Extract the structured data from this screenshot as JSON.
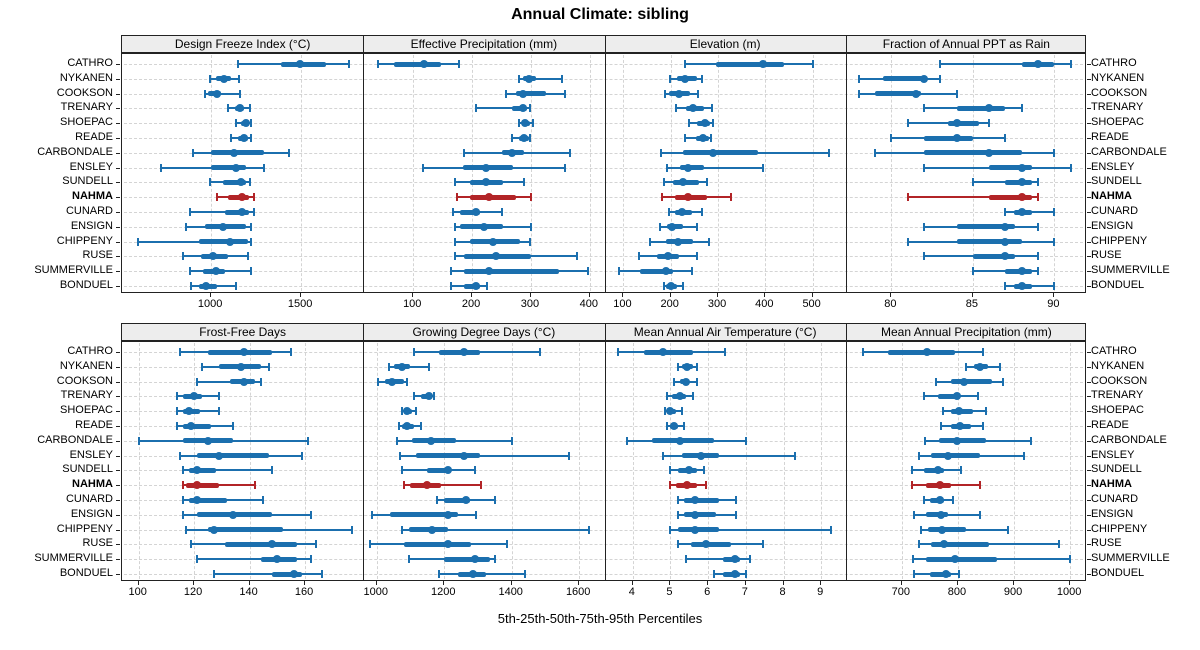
{
  "chart_data": {
    "type": "scatter",
    "subtype": "percentile-dotplot",
    "title": "Annual Climate: sibling",
    "xlabel": "5th-25th-50th-75th-95th Percentiles",
    "percentiles": [
      5,
      25,
      50,
      75,
      95
    ],
    "legend": "none",
    "grid": "dashed",
    "stations": [
      "CATHRO",
      "NYKANEN",
      "COOKSON",
      "TRENARY",
      "SHOEPAC",
      "READE",
      "CARBONDALE",
      "ENSLEY",
      "SUNDELL",
      "NAHMA",
      "CUNARD",
      "ENSIGN",
      "CHIPPENY",
      "RUSE",
      "SUMMERVILLE",
      "BONDUEL"
    ],
    "highlighted_station": "NAHMA",
    "colors": {
      "series": "#1b6fae",
      "highlight": "#b22427",
      "gridline": "#d4d4d4",
      "strip_bg": "#ededed",
      "border": "#222222"
    },
    "panels": [
      {
        "title": "Design Freeze Index (°C)",
        "row": 0,
        "col": 0,
        "xlim": [
          505,
          1845
        ],
        "ticks": [
          1000,
          1500
        ],
        "values": [
          [
            1150,
            1390,
            1495,
            1640,
            1765
          ],
          [
            995,
            1025,
            1070,
            1110,
            1155
          ],
          [
            965,
            985,
            1030,
            1055,
            1160
          ],
          [
            1095,
            1130,
            1160,
            1185,
            1215
          ],
          [
            1140,
            1165,
            1195,
            1210,
            1220
          ],
          [
            1110,
            1150,
            1185,
            1205,
            1220
          ],
          [
            900,
            1000,
            1125,
            1295,
            1435
          ],
          [
            720,
            1000,
            1140,
            1195,
            1295
          ],
          [
            995,
            1065,
            1165,
            1195,
            1215
          ],
          [
            1035,
            1095,
            1170,
            1210,
            1240
          ],
          [
            880,
            1075,
            1170,
            1210,
            1240
          ],
          [
            860,
            965,
            1065,
            1195,
            1220
          ],
          [
            595,
            935,
            1105,
            1205,
            1220
          ],
          [
            845,
            945,
            1010,
            1095,
            1205
          ],
          [
            880,
            955,
            1025,
            1075,
            1220
          ],
          [
            890,
            935,
            970,
            1035,
            1140
          ]
        ]
      },
      {
        "title": "Effective Precipitation (mm)",
        "row": 0,
        "col": 1,
        "xlim": [
          15,
          425
        ],
        "ticks": [
          100,
          200,
          300,
          400
        ],
        "values": [
          [
            40,
            67,
            118,
            147,
            178
          ],
          [
            280,
            286,
            296,
            308,
            353
          ],
          [
            258,
            274,
            286,
            325,
            358
          ],
          [
            206,
            267,
            286,
            294,
            298
          ],
          [
            280,
            285,
            290,
            298,
            303
          ],
          [
            267,
            279,
            288,
            296,
            298
          ],
          [
            186,
            250,
            267,
            289,
            367
          ],
          [
            117,
            185,
            224,
            270,
            358
          ],
          [
            171,
            197,
            224,
            253,
            289
          ],
          [
            175,
            197,
            228,
            274,
            300
          ],
          [
            168,
            180,
            207,
            214,
            250
          ],
          [
            171,
            180,
            221,
            253,
            300
          ],
          [
            171,
            197,
            235,
            281,
            298
          ],
          [
            171,
            186,
            241,
            300,
            378
          ],
          [
            164,
            186,
            228,
            347,
            397
          ],
          [
            164,
            186,
            206,
            214,
            225
          ]
        ]
      },
      {
        "title": "Elevation (m)",
        "row": 0,
        "col": 2,
        "xlim": [
          60,
          570
        ],
        "ticks": [
          100,
          200,
          300,
          400,
          500
        ],
        "values": [
          [
            230,
            295,
            395,
            440,
            500
          ],
          [
            198,
            213,
            230,
            255,
            267
          ],
          [
            187,
            196,
            218,
            241,
            258
          ],
          [
            211,
            232,
            248,
            270,
            288
          ],
          [
            239,
            256,
            272,
            284,
            290
          ],
          [
            230,
            253,
            269,
            281,
            286
          ],
          [
            180,
            225,
            290,
            385,
            535
          ],
          [
            193,
            220,
            237,
            270,
            395
          ],
          [
            185,
            204,
            227,
            260,
            277
          ],
          [
            182,
            208,
            237,
            277,
            327
          ],
          [
            196,
            208,
            223,
            246,
            267
          ],
          [
            177,
            193,
            202,
            225,
            255
          ],
          [
            156,
            189,
            215,
            248,
            280
          ],
          [
            132,
            170,
            195,
            218,
            256
          ],
          [
            90,
            135,
            190,
            205,
            245
          ],
          [
            185,
            189,
            200,
            213,
            227
          ]
        ]
      },
      {
        "title": "Fraction of Annual PPT as Rain",
        "row": 0,
        "col": 3,
        "xlim": [
          77.2,
          92
        ],
        "ticks": [
          80,
          85,
          90
        ],
        "values": [
          [
            83,
            88,
            89,
            90,
            91
          ],
          [
            78,
            79.5,
            82,
            82.2,
            83
          ],
          [
            78,
            79,
            81.5,
            81.8,
            84
          ],
          [
            82,
            84,
            86,
            87,
            88
          ],
          [
            81,
            83.5,
            84,
            85.4,
            86
          ],
          [
            80,
            82,
            84,
            85,
            87
          ],
          [
            79,
            82,
            86,
            88,
            90
          ],
          [
            82,
            86,
            88,
            88.6,
            91
          ],
          [
            85,
            87,
            88,
            88.6,
            89
          ],
          [
            81,
            86,
            88,
            88.6,
            89
          ],
          [
            87,
            87.5,
            88,
            88.6,
            90
          ],
          [
            82,
            84,
            87,
            87.6,
            89
          ],
          [
            81,
            84,
            87,
            88,
            90
          ],
          [
            82,
            85,
            87,
            87.6,
            89
          ],
          [
            85,
            87,
            88,
            88.6,
            89
          ],
          [
            87,
            87.5,
            88,
            88.6,
            90
          ]
        ]
      },
      {
        "title": "Frost-Free Days",
        "row": 1,
        "col": 0,
        "xlim": [
          94,
          181
        ],
        "ticks": [
          100,
          120,
          140,
          160
        ],
        "values": [
          [
            115,
            125,
            138,
            148,
            155
          ],
          [
            123,
            129,
            137,
            144,
            147
          ],
          [
            121,
            133,
            138,
            142,
            144
          ],
          [
            114,
            116,
            120,
            123,
            129
          ],
          [
            114,
            116,
            118,
            122,
            129
          ],
          [
            114,
            116,
            119,
            126,
            134
          ],
          [
            100,
            116,
            125,
            134,
            161
          ],
          [
            115,
            121,
            129,
            147,
            159
          ],
          [
            116,
            118,
            121,
            128,
            148
          ],
          [
            116,
            117,
            121,
            129,
            142
          ],
          [
            116,
            118,
            121,
            132,
            145
          ],
          [
            116,
            121,
            134,
            148,
            162
          ],
          [
            117,
            125,
            127,
            152,
            177
          ],
          [
            119,
            131,
            148,
            157,
            164
          ],
          [
            121,
            144,
            150,
            157,
            162
          ],
          [
            127,
            148,
            156,
            159,
            166
          ]
        ]
      },
      {
        "title": "Growing Degree Days (°C)",
        "row": 1,
        "col": 1,
        "xlim": [
          960,
          1675
        ],
        "ticks": [
          1000,
          1200,
          1400,
          1600
        ],
        "values": [
          [
            1110,
            1185,
            1260,
            1305,
            1485
          ],
          [
            1035,
            1050,
            1075,
            1100,
            1155
          ],
          [
            1005,
            1025,
            1045,
            1080,
            1090
          ],
          [
            1110,
            1130,
            1155,
            1165,
            1170
          ],
          [
            1075,
            1080,
            1090,
            1105,
            1115
          ],
          [
            1065,
            1075,
            1090,
            1110,
            1130
          ],
          [
            1060,
            1105,
            1160,
            1235,
            1400
          ],
          [
            1070,
            1115,
            1260,
            1305,
            1570
          ],
          [
            1075,
            1150,
            1210,
            1220,
            1290
          ],
          [
            1080,
            1100,
            1150,
            1190,
            1310
          ],
          [
            1180,
            1200,
            1265,
            1275,
            1350
          ],
          [
            985,
            1040,
            1210,
            1240,
            1295
          ],
          [
            1075,
            1095,
            1165,
            1210,
            1630
          ],
          [
            980,
            1080,
            1210,
            1280,
            1385
          ],
          [
            1095,
            1200,
            1290,
            1335,
            1350
          ],
          [
            1185,
            1240,
            1285,
            1325,
            1440
          ]
        ]
      },
      {
        "title": "Mean Annual Air Temperature (°C)",
        "row": 1,
        "col": 2,
        "xlim": [
          3.25,
          9.65
        ],
        "ticks": [
          4,
          5,
          6,
          7,
          8,
          9
        ],
        "values": [
          [
            3.6,
            4.3,
            4.8,
            5.6,
            6.45
          ],
          [
            5.2,
            5.3,
            5.45,
            5.6,
            5.7
          ],
          [
            5.1,
            5.25,
            5.4,
            5.5,
            5.7
          ],
          [
            4.9,
            5.05,
            5.25,
            5.4,
            5.6
          ],
          [
            4.85,
            4.95,
            5.0,
            5.15,
            5.3
          ],
          [
            4.9,
            5.0,
            5.1,
            5.2,
            5.35
          ],
          [
            3.85,
            4.5,
            5.25,
            6.15,
            7.0
          ],
          [
            4.8,
            5.3,
            5.8,
            6.3,
            8.3
          ],
          [
            5.0,
            5.2,
            5.5,
            5.7,
            5.9
          ],
          [
            5.0,
            5.15,
            5.45,
            5.7,
            5.95
          ],
          [
            5.2,
            5.35,
            5.65,
            6.3,
            6.75
          ],
          [
            5.2,
            5.35,
            5.65,
            6.2,
            6.75
          ],
          [
            5.0,
            5.2,
            5.65,
            6.3,
            9.25
          ],
          [
            5.2,
            5.55,
            5.95,
            6.6,
            7.45
          ],
          [
            5.4,
            6.4,
            6.7,
            6.85,
            7.1
          ],
          [
            6.15,
            6.4,
            6.7,
            6.85,
            7.0
          ]
        ]
      },
      {
        "title": "Mean Annual Precipitation (mm)",
        "row": 1,
        "col": 3,
        "xlim": [
          600,
          1030
        ],
        "ticks": [
          700,
          800,
          900,
          1000
        ],
        "values": [
          [
            630,
            675,
            745,
            795,
            845
          ],
          [
            815,
            828,
            840,
            853,
            875
          ],
          [
            760,
            788,
            810,
            860,
            880
          ],
          [
            740,
            765,
            798,
            803,
            835
          ],
          [
            773,
            788,
            802,
            826,
            850
          ],
          [
            770,
            788,
            803,
            823,
            845
          ],
          [
            742,
            767,
            799,
            850,
            930
          ],
          [
            730,
            752,
            783,
            840,
            918
          ],
          [
            718,
            739,
            764,
            776,
            805
          ],
          [
            718,
            743,
            768,
            788,
            840
          ],
          [
            740,
            751,
            768,
            776,
            792
          ],
          [
            721,
            743,
            769,
            782,
            840
          ],
          [
            734,
            747,
            771,
            815,
            890
          ],
          [
            730,
            752,
            776,
            856,
            980
          ],
          [
            720,
            743,
            795,
            869,
            1000
          ],
          [
            721,
            751,
            779,
            788,
            802
          ]
        ]
      }
    ]
  }
}
